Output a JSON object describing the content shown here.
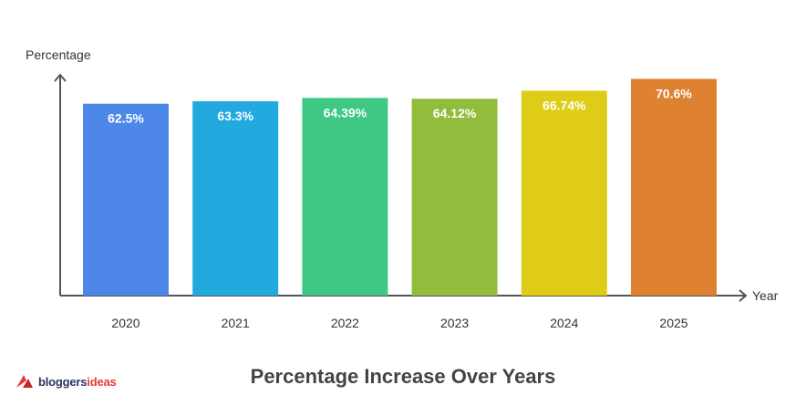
{
  "chart_data": {
    "type": "bar",
    "title": "Percentage Increase Over Years",
    "xlabel": "Year",
    "ylabel": "Percentage",
    "categories": [
      "2020",
      "2021",
      "2022",
      "2023",
      "2024",
      "2025"
    ],
    "values": [
      62.5,
      63.3,
      64.39,
      64.12,
      66.74,
      70.6
    ],
    "value_labels": [
      "62.5%",
      "63.3%",
      "64.39%",
      "64.12%",
      "66.74%",
      "70.6%"
    ],
    "colors": [
      "#4d88e8",
      "#22a9de",
      "#3ec884",
      "#92bd3c",
      "#dfcc17",
      "#de8131"
    ],
    "ylim": [
      0,
      80
    ],
    "grid": false,
    "legend": "none"
  },
  "branding": {
    "logo_text_part1": "bloggers",
    "logo_text_part2": "ideas",
    "logo_color": "#e53935"
  }
}
